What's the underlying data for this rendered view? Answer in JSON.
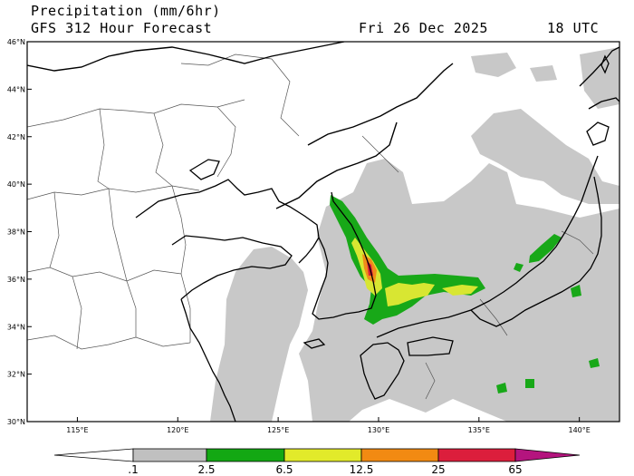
{
  "header": {
    "title": "Precipitation (mm/6hr)",
    "model": "GFS 312 Hour Forecast",
    "date": "Fri 26 Dec 2025",
    "time": "18 UTC"
  },
  "map": {
    "lon_range": [
      112.5,
      142
    ],
    "lat_range": [
      30,
      46
    ],
    "lon_ticks": [
      {
        "value": 115,
        "label": "115°E"
      },
      {
        "value": 120,
        "label": "120°E"
      },
      {
        "value": 125,
        "label": "125°E"
      },
      {
        "value": 130,
        "label": "130°E"
      },
      {
        "value": 135,
        "label": "135°E"
      },
      {
        "value": 140,
        "label": "140°E"
      }
    ],
    "lat_ticks": [
      {
        "value": 30,
        "label": "30°N"
      },
      {
        "value": 32,
        "label": "32°N"
      },
      {
        "value": 34,
        "label": "34°N"
      },
      {
        "value": 36,
        "label": "36°N"
      },
      {
        "value": 38,
        "label": "38°N"
      },
      {
        "value": 40,
        "label": "40°N"
      },
      {
        "value": 42,
        "label": "42°N"
      },
      {
        "value": 44,
        "label": "44°N"
      },
      {
        "value": 46,
        "label": "46°N"
      }
    ]
  },
  "legend": {
    "labels": [
      ".1",
      "2.5",
      "6.5",
      "12.5",
      "25",
      "65"
    ],
    "colors": [
      "#c0c0c0",
      "#13a813",
      "#e2ea2a",
      "#f28a12",
      "#dc1e3c",
      "#b4147e"
    ]
  },
  "colors": {
    "light_precip": "#c8c8c8",
    "moderate": "#18a818",
    "heavy": "#d8e632",
    "very_heavy": "#f08c1a",
    "extreme": "#d81e3a"
  }
}
